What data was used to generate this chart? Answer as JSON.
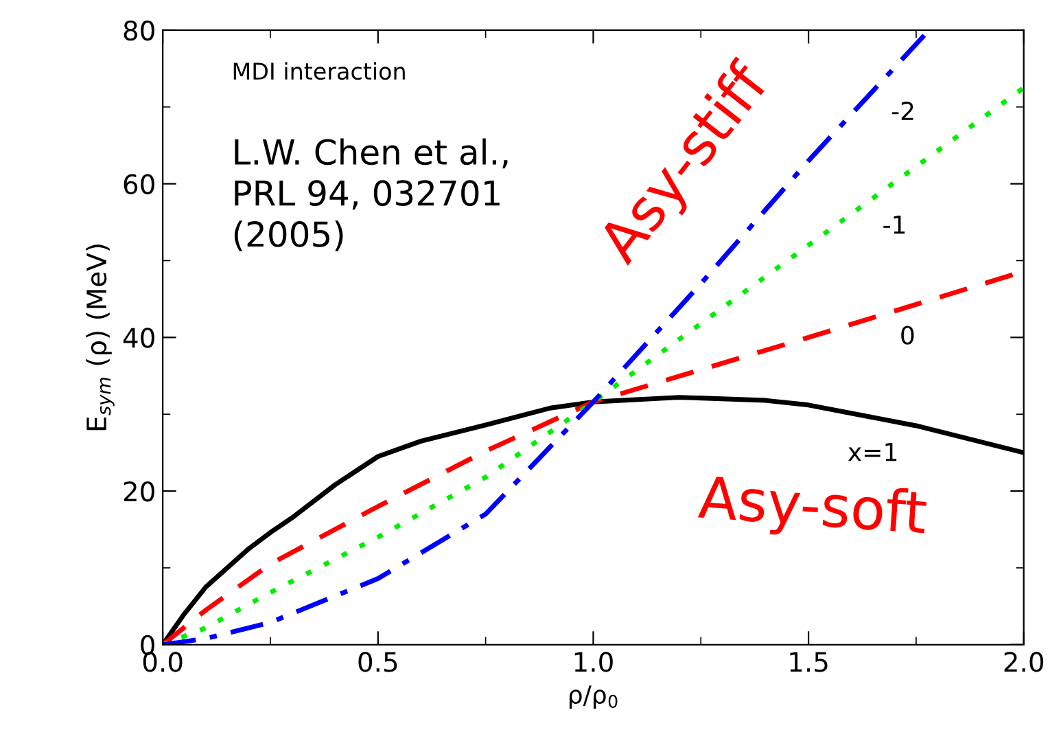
{
  "chart_data": {
    "type": "line",
    "xlabel": "ρ/ρ$_{0}$",
    "ylabel": "E$_{sym}$ (ρ) (MeV)",
    "xlim": [
      0,
      2
    ],
    "xticks": [
      {
        "value": 0,
        "label": "0.0"
      },
      0.5,
      {
        "value": 1,
        "label": "1.0"
      },
      1.5,
      {
        "value": 2,
        "label": "2.0"
      }
    ],
    "ylim": [
      0,
      80
    ],
    "yticks": [
      0,
      20,
      40,
      60,
      80
    ],
    "grid": false,
    "legend": false,
    "marker": "none",
    "series": [
      {
        "name": "x=1",
        "color": "#000000",
        "line_style": "solid",
        "x": [
          0,
          0.05,
          0.1,
          0.2,
          0.25,
          0.3,
          0.4,
          0.5,
          0.6,
          0.75,
          0.9,
          1.0,
          1.2,
          1.4,
          1.5,
          1.75,
          2.0
        ],
        "values": [
          0,
          4,
          7.5,
          12.5,
          14.6,
          16.5,
          20.8,
          24.5,
          26.5,
          28.6,
          30.8,
          31.6,
          32.2,
          31.8,
          31.2,
          28.5,
          25
        ]
      },
      {
        "name": "0",
        "color": "#ff0000",
        "line_style": "dashed",
        "x": [
          0,
          0.1,
          0.25,
          0.5,
          0.75,
          1.0,
          1.5,
          2.0
        ],
        "values": [
          0,
          4.5,
          10.5,
          18,
          25.2,
          31.6,
          40,
          48.6
        ]
      },
      {
        "name": "-1",
        "color": "#00ee00",
        "line_style": "dotted",
        "x": [
          0,
          0.1,
          0.25,
          0.5,
          0.75,
          1.0,
          1.5,
          2.0
        ],
        "values": [
          0,
          2.2,
          6.8,
          14,
          21.8,
          31.6,
          52,
          72.5
        ]
      },
      {
        "name": "-2",
        "color": "#0000ff",
        "line_style": "dashdot",
        "x": [
          0,
          0.1,
          0.25,
          0.5,
          0.75,
          1.0,
          1.25,
          1.5,
          1.78
        ],
        "values": [
          0,
          0.8,
          2.9,
          8.6,
          17,
          31.6,
          47,
          63,
          80
        ]
      }
    ],
    "annotations": [
      "MDI interaction",
      "L.W. Chen et al.,\nPRL 94, 032701\n(2005)",
      "Asy-stiff",
      "Asy-soft"
    ]
  }
}
